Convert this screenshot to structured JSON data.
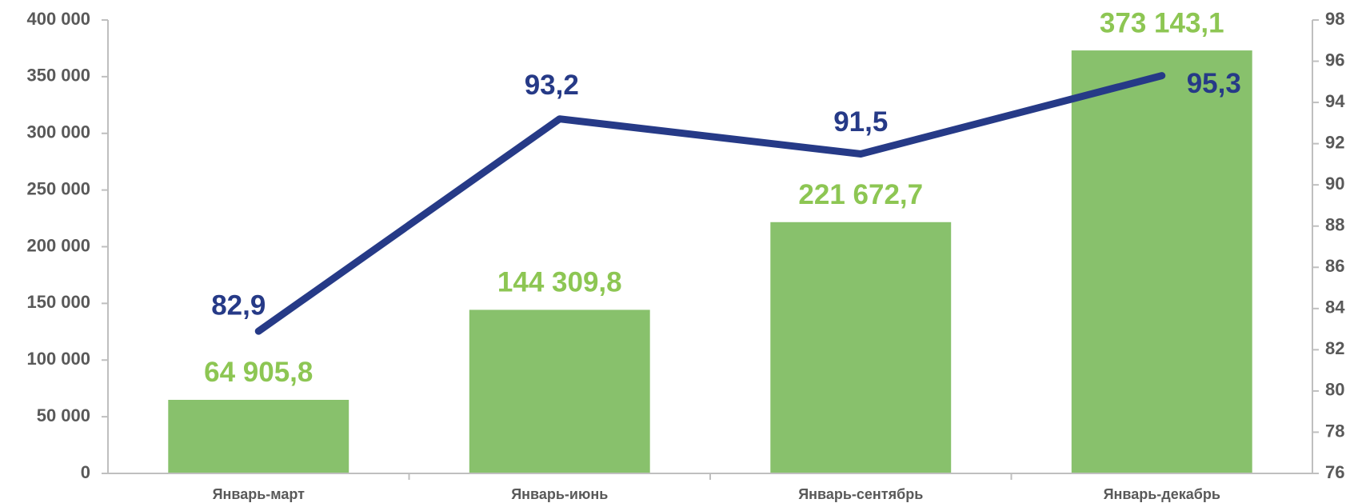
{
  "chart_data": {
    "type": "combo",
    "categories": [
      "Январь-март",
      "Январь-июнь",
      "Январь-сентябрь",
      "Январь-декабрь"
    ],
    "series": [
      {
        "type": "bar",
        "color": "#88c16c",
        "label_color": "#8dc653",
        "values": [
          64905.8,
          144309.8,
          221672.7,
          373143.1
        ],
        "value_labels": [
          "64 905,8",
          "144 309,8",
          "221 672,7",
          "373 143,1"
        ]
      },
      {
        "type": "line",
        "axis": "y2",
        "color": "#263a87",
        "values": [
          82.9,
          93.2,
          91.5,
          95.3
        ],
        "value_labels": [
          "82,9",
          "93,2",
          "91,5",
          "95,3"
        ]
      }
    ],
    "ylim": [
      0,
      400000
    ],
    "yticks": [
      0,
      {
        "value": 50000,
        "label": "50 000"
      },
      {
        "value": 100000,
        "label": "100 000"
      },
      {
        "value": 150000,
        "label": "150 000"
      },
      {
        "value": 200000,
        "label": "200 000"
      },
      {
        "value": 250000,
        "label": "250 000"
      },
      {
        "value": 300000,
        "label": "300 000"
      },
      {
        "value": 350000,
        "label": "350 000"
      },
      {
        "value": 400000,
        "label": "400 000"
      }
    ],
    "y2lim": [
      76,
      98
    ],
    "y2ticks": [
      76,
      78,
      80,
      82,
      84,
      86,
      88,
      90,
      92,
      94,
      96,
      98
    ],
    "grid": false
  }
}
